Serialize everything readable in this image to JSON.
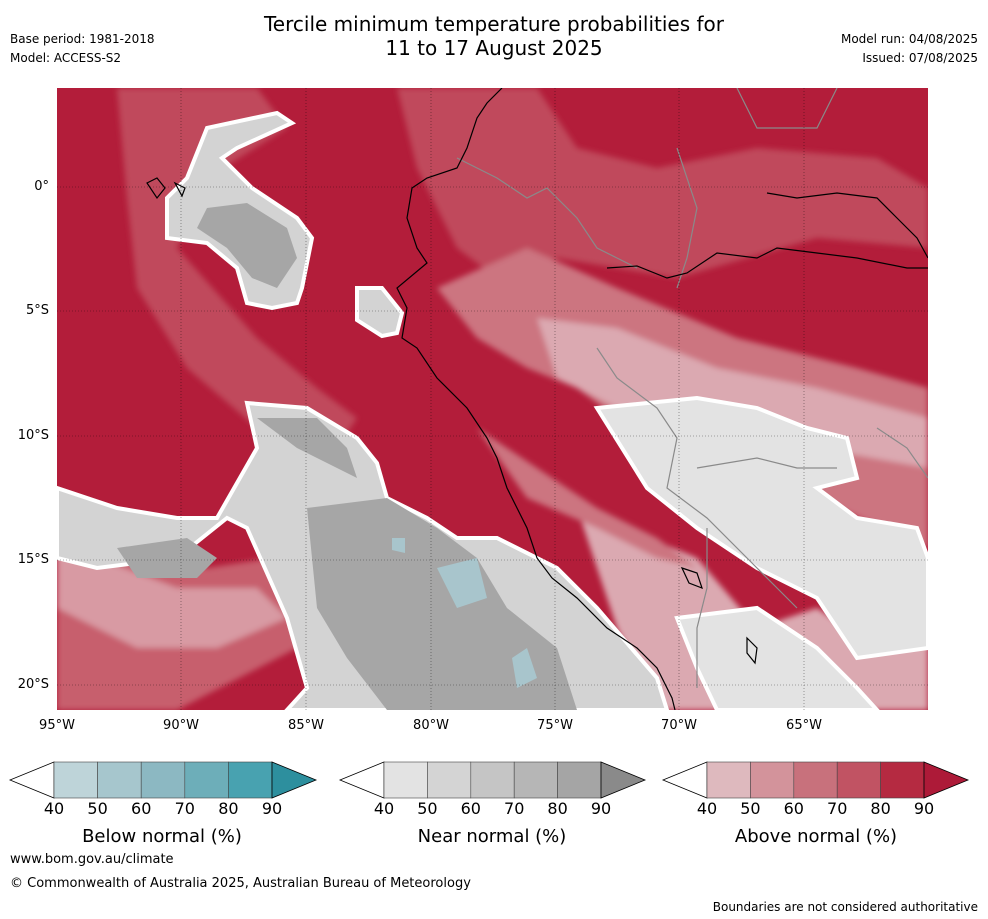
{
  "header": {
    "title_line1": "Tercile minimum temperature probabilities for",
    "title_line2": "11 to 17 August 2025",
    "base_period": "Base period: 1981-2018",
    "model": "Model: ACCESS-S2",
    "model_run": "Model run: 04/08/2025",
    "issued": "Issued: 07/08/2025"
  },
  "map": {
    "lon_ticks": [
      "95°W",
      "90°W",
      "85°W",
      "80°W",
      "75°W",
      "70°W",
      "65°W"
    ],
    "lat_ticks": [
      "0°",
      "5°S",
      "10°S",
      "15°S",
      "20°S"
    ]
  },
  "legend": {
    "below": {
      "title": "Below normal (%)",
      "labels": [
        "40",
        "50",
        "60",
        "70",
        "80",
        "90"
      ],
      "colors": [
        "#bed4d9",
        "#a6c6cd",
        "#8cb8c2",
        "#6daeb9",
        "#48a2b0",
        "#2d8f9e"
      ]
    },
    "near": {
      "title": "Near normal (%)",
      "labels": [
        "40",
        "50",
        "60",
        "70",
        "80",
        "90"
      ],
      "colors": [
        "#e3e3e3",
        "#d4d4d4",
        "#c5c5c5",
        "#b6b6b6",
        "#a5a5a5",
        "#8a8a8a"
      ]
    },
    "above": {
      "title": "Above normal (%)",
      "labels": [
        "40",
        "50",
        "60",
        "70",
        "80",
        "90"
      ],
      "colors": [
        "#deb9be",
        "#d3939b",
        "#c8717c",
        "#c15363",
        "#b52a41",
        "#ad1a38"
      ]
    }
  },
  "footer": {
    "website": "www.bom.gov.au/climate",
    "copyright": "© Commonwealth of Australia 2025, Australian Bureau of Meteorology",
    "disclaimer": "Boundaries are not considered authoritative"
  }
}
